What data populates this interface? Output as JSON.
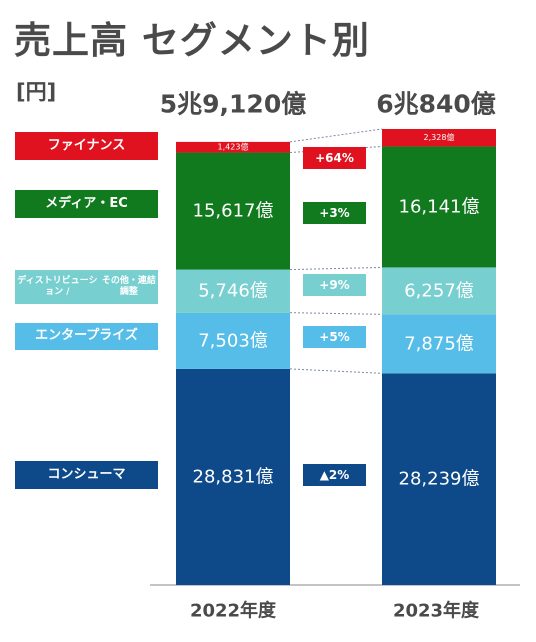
{
  "title": "売上高 セグメント別",
  "unit": "[円]",
  "colors": {
    "finance": "#e0121f",
    "media": "#127a1e",
    "distribution": "#78cfd0",
    "enterprise": "#55bde8",
    "consumer": "#0e4a8a"
  },
  "legend": [
    {
      "key": "finance",
      "label": "ファイナンス"
    },
    {
      "key": "media",
      "label": "メディア・EC"
    },
    {
      "key": "distribution",
      "label": "ディストリビューション /\nその他・連結調整"
    },
    {
      "key": "enterprise",
      "label": "エンタープライズ"
    },
    {
      "key": "consumer",
      "label": "コンシューマ"
    }
  ],
  "chart_data": {
    "type": "bar",
    "stacked": true,
    "categories": [
      "2022年度",
      "2023年度"
    ],
    "totals": [
      "5兆9,120億",
      "6兆840億"
    ],
    "series": [
      {
        "key": "consumer",
        "name": "コンシューマ",
        "values": [
          28831,
          28239
        ],
        "labels": [
          "28,831億",
          "28,239億"
        ],
        "growth": "▲2%"
      },
      {
        "key": "enterprise",
        "name": "エンタープライズ",
        "values": [
          7503,
          7875
        ],
        "labels": [
          "7,503億",
          "7,875億"
        ],
        "growth": "+5%"
      },
      {
        "key": "distribution",
        "name": "ディストリビューション / その他・連結調整",
        "values": [
          5746,
          6257
        ],
        "labels": [
          "5,746億",
          "6,257億"
        ],
        "growth": "+9%"
      },
      {
        "key": "media",
        "name": "メディア・EC",
        "values": [
          15617,
          16141
        ],
        "labels": [
          "15,617億",
          "16,141億"
        ],
        "growth": "+3%"
      },
      {
        "key": "finance",
        "name": "ファイナンス",
        "values": [
          1423,
          2328
        ],
        "labels": [
          "1,423億",
          "2,328億"
        ],
        "growth": "+64%"
      }
    ]
  }
}
